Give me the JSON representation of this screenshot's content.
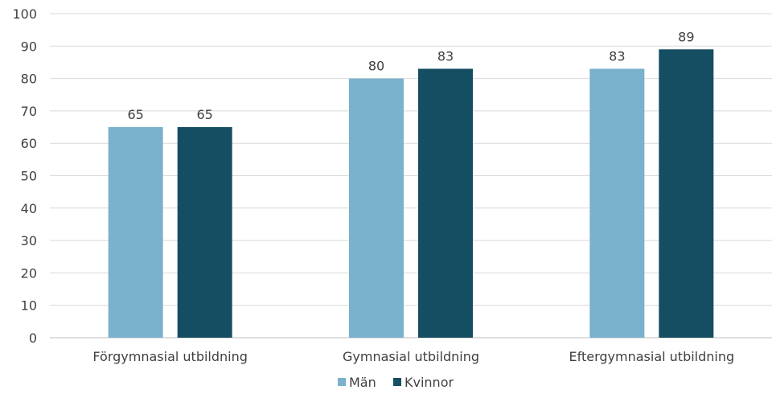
{
  "chart_data": {
    "type": "bar",
    "title": "",
    "xlabel": "",
    "ylabel": "",
    "categories": [
      "Förgymnasial utbildning",
      "Gymnasial utbildning",
      "Eftergymnasial utbildning"
    ],
    "series": [
      {
        "name": "Män",
        "values": [
          65,
          80,
          83
        ],
        "color": "#7ab1cc"
      },
      {
        "name": "Kvinnor",
        "values": [
          65,
          83,
          89
        ],
        "color": "#154e63"
      }
    ],
    "ylim": [
      0,
      100
    ],
    "yticks": [
      0,
      10,
      20,
      30,
      40,
      50,
      60,
      70,
      80,
      90,
      100
    ],
    "grid": true,
    "legend": "bottom-center",
    "data_labels": true
  }
}
